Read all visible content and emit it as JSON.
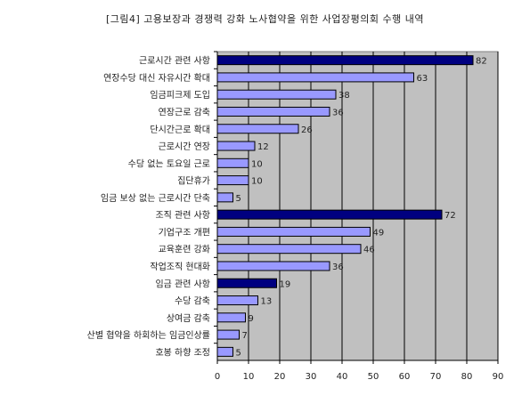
{
  "chart_data": {
    "type": "bar",
    "orientation": "horizontal",
    "title": "[그림4] 고용보장과 경쟁력 강화 노사협약을 위한 사업장평의회 수행 내역",
    "categories": [
      "근로시간 관련 사항",
      "연장수당 대신 자유시간 확대",
      "임금피크제 도입",
      "연장근로 감축",
      "단시간근로 확대",
      "근로시간 연장",
      "수당 없는 토요일 근로",
      "집단휴가",
      "임금 보상 없는 근로시간 단축",
      "조직 관련 사항",
      "기업구조 개편",
      "교육훈련 강화",
      "작업조직 현대화",
      "임금 관련 사항",
      "수당 감축",
      "상여금 감축",
      "산별 협약을 하회하는 임금인상률",
      "호봉 하향 조정"
    ],
    "values": [
      82,
      63,
      38,
      36,
      26,
      12,
      10,
      10,
      5,
      72,
      49,
      46,
      36,
      19,
      13,
      9,
      7,
      5
    ],
    "value_labels": [
      "82",
      "63",
      "38",
      "36",
      "26",
      "12",
      "10",
      "10",
      "5",
      "72",
      "49",
      "46",
      "36",
      "19",
      "13",
      "9",
      "7",
      "5"
    ],
    "group_header": [
      true,
      false,
      false,
      false,
      false,
      false,
      false,
      false,
      false,
      true,
      false,
      false,
      false,
      true,
      false,
      false,
      false,
      false
    ],
    "xlim": [
      0,
      90
    ],
    "xticks": [
      0,
      10,
      20,
      30,
      40,
      50,
      60,
      70,
      80,
      90
    ],
    "xtick_labels": [
      "0",
      "10",
      "20",
      "30",
      "40",
      "50",
      "60",
      "70",
      "80",
      "90"
    ],
    "grid": true,
    "colors": {
      "header_bar": "#000080",
      "item_bar": "#9999FF",
      "bar_border": "#000000",
      "plot_background": "#C0C0C0",
      "grid": "#000000"
    }
  }
}
